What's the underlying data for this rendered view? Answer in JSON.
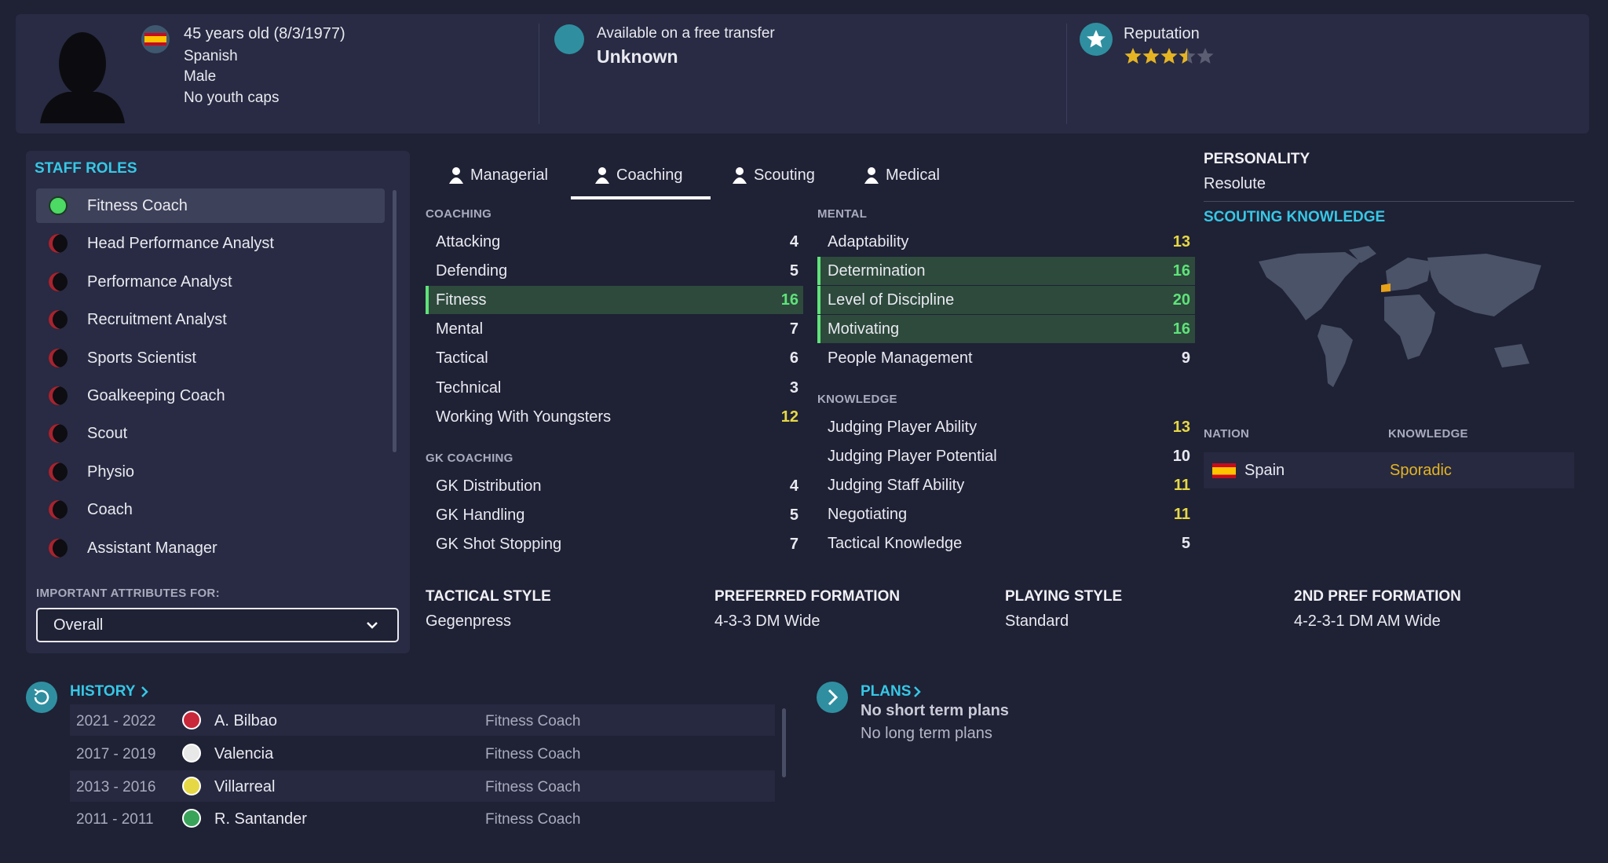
{
  "profile": {
    "age_line": "45 years old (8/3/1977)",
    "nationality": "Spanish",
    "gender": "Male",
    "youth_caps": "No youth caps",
    "transfer_status": "Available on a free transfer",
    "value": "Unknown",
    "reputation_label": "Reputation",
    "reputation_stars": 3.5
  },
  "staff_roles": {
    "title": "STAFF ROLES",
    "roles": [
      "Fitness Coach",
      "Head Performance Analyst",
      "Performance Analyst",
      "Recruitment Analyst",
      "Sports Scientist",
      "Goalkeeping Coach",
      "Scout",
      "Physio",
      "Coach",
      "Assistant Manager"
    ],
    "important_label": "IMPORTANT ATTRIBUTES FOR:",
    "important_value": "Overall"
  },
  "tabs": [
    "Managerial",
    "Coaching",
    "Scouting",
    "Medical"
  ],
  "attributes": {
    "coaching": {
      "title": "COACHING",
      "rows": [
        {
          "name": "Attacking",
          "value": 4
        },
        {
          "name": "Defending",
          "value": 5
        },
        {
          "name": "Fitness",
          "value": 16,
          "highlight": true
        },
        {
          "name": "Mental",
          "value": 7
        },
        {
          "name": "Tactical",
          "value": 6
        },
        {
          "name": "Technical",
          "value": 3
        },
        {
          "name": "Working With Youngsters",
          "value": 12
        }
      ]
    },
    "gk_coaching": {
      "title": "GK COACHING",
      "rows": [
        {
          "name": "GK Distribution",
          "value": 4
        },
        {
          "name": "GK Handling",
          "value": 5
        },
        {
          "name": "GK Shot Stopping",
          "value": 7
        }
      ]
    },
    "mental": {
      "title": "MENTAL",
      "rows": [
        {
          "name": "Adaptability",
          "value": 13
        },
        {
          "name": "Determination",
          "value": 16,
          "highlight": true
        },
        {
          "name": "Level of Discipline",
          "value": 20,
          "highlight": true
        },
        {
          "name": "Motivating",
          "value": 16,
          "highlight": true
        },
        {
          "name": "People Management",
          "value": 9
        }
      ]
    },
    "knowledge": {
      "title": "KNOWLEDGE",
      "rows": [
        {
          "name": "Judging Player Ability",
          "value": 13
        },
        {
          "name": "Judging Player Potential",
          "value": 10
        },
        {
          "name": "Judging Staff Ability",
          "value": 11
        },
        {
          "name": "Negotiating",
          "value": 11
        },
        {
          "name": "Tactical Knowledge",
          "value": 5
        }
      ]
    }
  },
  "personality": {
    "title": "PERSONALITY",
    "value": "Resolute"
  },
  "scouting": {
    "title": "SCOUTING KNOWLEDGE",
    "columns": [
      "NATION",
      "KNOWLEDGE"
    ],
    "rows": [
      [
        "Spain",
        "Sporadic"
      ]
    ]
  },
  "tactics": [
    {
      "label": "TACTICAL STYLE",
      "value": "Gegenpress"
    },
    {
      "label": "PREFERRED FORMATION",
      "value": "4-3-3 DM Wide"
    },
    {
      "label": "PLAYING STYLE",
      "value": "Standard"
    },
    {
      "label": "2ND PREF FORMATION",
      "value": "4-2-3-1 DM AM Wide"
    }
  ],
  "history": {
    "title": "HISTORY",
    "rows": [
      [
        "2021 - 2022",
        "A. Bilbao",
        "Fitness Coach"
      ],
      [
        "2017 - 2019",
        "Valencia",
        "Fitness Coach"
      ],
      [
        "2013 - 2016",
        "Villarreal",
        "Fitness Coach"
      ],
      [
        "2011 - 2011",
        "R. Santander",
        "Fitness Coach"
      ]
    ]
  },
  "plans": {
    "title": "PLANS",
    "short": "No short term plans",
    "long": "No long term plans"
  }
}
